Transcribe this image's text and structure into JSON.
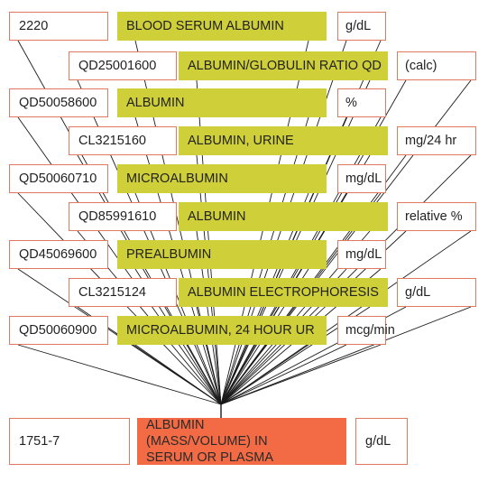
{
  "rows": [
    {
      "code": "2220",
      "name": "BLOOD SERUM ALBUMIN",
      "unit": "g/dL"
    },
    {
      "code": "QD25001600",
      "name": "ALBUMIN/GLOBULIN RATIO QD",
      "unit": "(calc)"
    },
    {
      "code": "QD50058600",
      "name": "ALBUMIN",
      "unit": "%"
    },
    {
      "code": "CL3215160",
      "name": "ALBUMIN, URINE",
      "unit": "mg/24 hr"
    },
    {
      "code": "QD50060710",
      "name": "MICROALBUMIN",
      "unit": "mg/dL"
    },
    {
      "code": "QD85991610",
      "name": "ALBUMIN",
      "unit": "relative %"
    },
    {
      "code": "QD45069600",
      "name": "PREALBUMIN",
      "unit": "mg/dL"
    },
    {
      "code": "CL3215124",
      "name": "ALBUMIN ELECTROPHORESIS",
      "unit": "g/dL"
    },
    {
      "code": "QD50060900",
      "name": "MICROALBUMIN, 24 HOUR UR",
      "unit": "mcg/min"
    }
  ],
  "target": {
    "code": "1751-7",
    "name": "ALBUMIN (MASS/VOLUME) IN SERUM OR PLASMA",
    "unit": "g/dL"
  },
  "colors": {
    "name_fill": "#cfcf3a",
    "target_fill": "#f26b45",
    "border": "#e07a5f",
    "line": "#1a1a1a"
  }
}
